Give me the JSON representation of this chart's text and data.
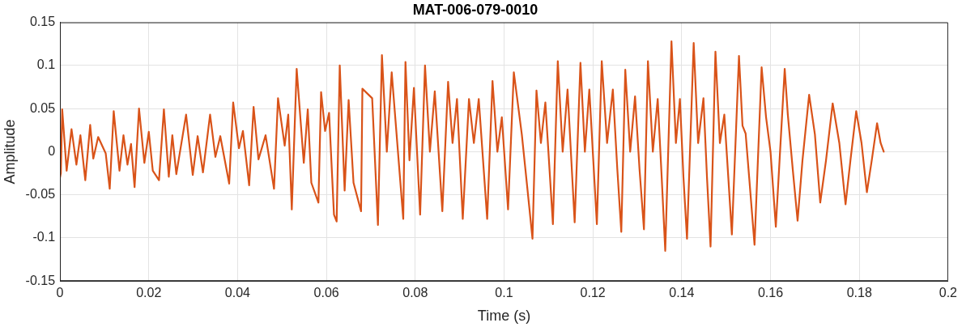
{
  "chart_data": {
    "type": "line",
    "title": "MAT-006-079-0010",
    "xlabel": "Time (s)",
    "ylabel": "Amplitude",
    "xlim": [
      0,
      0.2
    ],
    "xticks": [
      0,
      0.02,
      0.04,
      0.06,
      0.08,
      0.1,
      0.12,
      0.14,
      0.16,
      0.18,
      0.2
    ],
    "ylim": [
      -0.15,
      0.15
    ],
    "yticks": [
      -0.15,
      -0.1,
      -0.05,
      0,
      0.05,
      0.1,
      0.15
    ],
    "grid": true,
    "marker": "none",
    "line_style": "solid",
    "series": [
      {
        "color": "#d95319",
        "x": [
          0,
          0.0002,
          0.0005,
          0.0015,
          0.0026,
          0.0037,
          0.0046,
          0.0057,
          0.0068,
          0.0075,
          0.0086,
          0.0103,
          0.0112,
          0.0121,
          0.0134,
          0.0143,
          0.0152,
          0.016,
          0.0168,
          0.0178,
          0.019,
          0.02,
          0.0209,
          0.0223,
          0.0234,
          0.0245,
          0.0253,
          0.0262,
          0.0284,
          0.0299,
          0.031,
          0.0322,
          0.0338,
          0.035,
          0.0361,
          0.0381,
          0.039,
          0.0403,
          0.0412,
          0.0426,
          0.0436,
          0.0447,
          0.0463,
          0.0482,
          0.0491,
          0.0506,
          0.0514,
          0.0522,
          0.0533,
          0.0549,
          0.0558,
          0.0566,
          0.0582,
          0.0588,
          0.0597,
          0.0606,
          0.0617,
          0.0623,
          0.063,
          0.0641,
          0.065,
          0.0661,
          0.0678,
          0.0681,
          0.0703,
          0.0716,
          0.0725,
          0.0736,
          0.0747,
          0.0773,
          0.0778,
          0.0787,
          0.0797,
          0.0811,
          0.0822,
          0.0833,
          0.0844,
          0.0861,
          0.0874,
          0.0884,
          0.0894,
          0.0907,
          0.0921,
          0.0932,
          0.0943,
          0.0962,
          0.0974,
          0.0985,
          0.0995,
          0.1009,
          0.1022,
          0.104,
          0.1052,
          0.1064,
          0.1073,
          0.1083,
          0.1093,
          0.111,
          0.1121,
          0.1132,
          0.1143,
          0.1159,
          0.1172,
          0.1182,
          0.1192,
          0.1209,
          0.122,
          0.1232,
          0.1245,
          0.1255,
          0.1264,
          0.1273,
          0.1284,
          0.1295,
          0.1305,
          0.1315,
          0.1324,
          0.1335,
          0.1346,
          0.1355,
          0.1363,
          0.1377,
          0.1387,
          0.1396,
          0.1404,
          0.1412,
          0.1427,
          0.1437,
          0.1449,
          0.1457,
          0.1465,
          0.1476,
          0.1486,
          0.1496,
          0.1505,
          0.1513,
          0.1529,
          0.1537,
          0.1544,
          0.1552,
          0.1564,
          0.158,
          0.159,
          0.16,
          0.1612,
          0.1632,
          0.1639,
          0.165,
          0.1661,
          0.1672,
          0.1687,
          0.17,
          0.1712,
          0.1725,
          0.174,
          0.1755,
          0.1769,
          0.178,
          0.1793,
          0.1805,
          0.1817,
          0.1828,
          0.184,
          0.1848,
          0.1855
        ],
        "values": [
          -0.03,
          -0.025,
          0.049,
          -0.022,
          0.026,
          -0.015,
          0.019,
          -0.033,
          0.031,
          -0.008,
          0.017,
          -0.002,
          -0.043,
          0.047,
          -0.022,
          0.019,
          -0.015,
          0.009,
          -0.041,
          0.05,
          -0.013,
          0.023,
          -0.022,
          -0.033,
          0.049,
          -0.029,
          0.019,
          -0.026,
          0.043,
          -0.027,
          0.018,
          -0.024,
          0.043,
          -0.006,
          0.018,
          -0.037,
          0.057,
          0.004,
          0.024,
          -0.039,
          0.052,
          -0.009,
          0.019,
          -0.043,
          0.062,
          0.007,
          0.043,
          -0.067,
          0.096,
          -0.013,
          0.049,
          -0.036,
          -0.059,
          0.069,
          0.024,
          0.045,
          -0.073,
          -0.081,
          0.1,
          -0.045,
          0.06,
          -0.036,
          -0.069,
          0.073,
          0.062,
          -0.085,
          0.112,
          0,
          0.092,
          -0.078,
          0.104,
          -0.01,
          0.074,
          -0.073,
          0.1,
          0,
          0.07,
          -0.069,
          0.081,
          0.01,
          0.061,
          -0.078,
          0.061,
          0.01,
          0.061,
          -0.078,
          0.082,
          0,
          0.04,
          -0.067,
          0.092,
          0.02,
          -0.04,
          -0.101,
          0.071,
          0.01,
          0.057,
          -0.084,
          0.105,
          0,
          0.072,
          -0.082,
          0.103,
          0,
          0.072,
          -0.084,
          0.105,
          0.01,
          0.072,
          -0.02,
          -0.093,
          0.095,
          0,
          0.064,
          -0.02,
          -0.09,
          0.105,
          0,
          0.061,
          -0.03,
          -0.115,
          0.128,
          0.01,
          0.061,
          -0.03,
          -0.101,
          0.126,
          0.01,
          0.062,
          -0.03,
          -0.11,
          0.116,
          0.01,
          0.043,
          -0.03,
          -0.096,
          0.111,
          0.03,
          0.021,
          -0.03,
          -0.108,
          0.098,
          0.04,
          0,
          -0.087,
          0.096,
          0.043,
          -0.02,
          -0.08,
          -0.01,
          0.066,
          0.02,
          -0.059,
          -0.01,
          0.056,
          0.01,
          -0.061,
          -0.01,
          0.047,
          0.01,
          -0.047,
          -0.01,
          0.033,
          0.01,
          0
        ]
      }
    ]
  }
}
